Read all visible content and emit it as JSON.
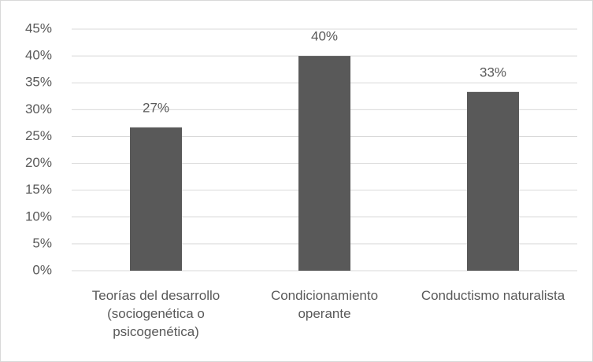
{
  "chart_data": {
    "type": "bar",
    "categories": [
      "Teorías del desarrollo (sociogenética o psicogenética)",
      "Condicionamiento operante",
      "Conductismo naturalista"
    ],
    "values": [
      26.7,
      40,
      33.3
    ],
    "value_labels": [
      "27%",
      "40%",
      "33%"
    ],
    "color": "#595959",
    "ylim": [
      0,
      45
    ],
    "yticks": [
      {
        "value": 0,
        "label": "0%"
      },
      {
        "value": 5,
        "label": "5%"
      },
      {
        "value": 10,
        "label": "10%"
      },
      {
        "value": 15,
        "label": "15%"
      },
      {
        "value": 20,
        "label": "20%"
      },
      {
        "value": 25,
        "label": "25%"
      },
      {
        "value": 30,
        "label": "30%"
      },
      {
        "value": 35,
        "label": "35%"
      },
      {
        "value": 40,
        "label": "40%"
      },
      {
        "value": 45,
        "label": "45%"
      }
    ],
    "grid": true
  }
}
